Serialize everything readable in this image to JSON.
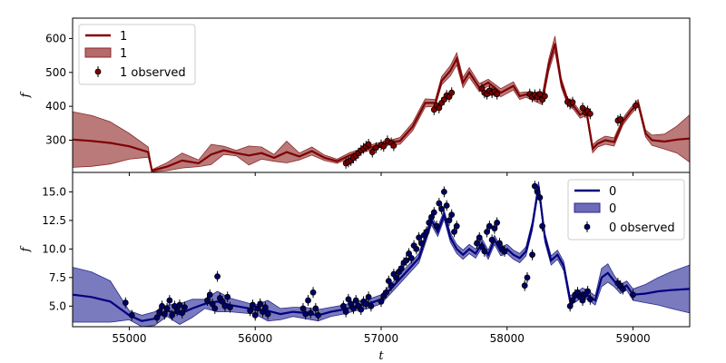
{
  "chart_data": [
    {
      "type": "line",
      "panel": "top",
      "xlabel": "",
      "ylabel": "f",
      "xlim": [
        54550,
        59450
      ],
      "ylim": [
        205,
        660
      ],
      "yticks": [
        300,
        400,
        500,
        600
      ],
      "xticks": [
        55000,
        56000,
        57000,
        58000,
        59000
      ],
      "show_xtick_labels": false,
      "legend": "top-left",
      "colors": {
        "line": "#7f0000",
        "band": "#b36b6b",
        "band_edge": "#8b2a2a"
      },
      "legend_entries": [
        "1",
        "1",
        "1 observed"
      ],
      "model_x": [
        54550,
        54700,
        54850,
        55000,
        55150,
        55180,
        55300,
        55420,
        55550,
        55650,
        55750,
        55850,
        55950,
        56050,
        56150,
        56250,
        56350,
        56450,
        56550,
        56650,
        56750,
        56850,
        56950,
        57050,
        57150,
        57250,
        57350,
        57430,
        57480,
        57550,
        57600,
        57650,
        57700,
        57780,
        57850,
        57950,
        58050,
        58100,
        58150,
        58220,
        58280,
        58330,
        58380,
        58430,
        58480,
        58530,
        58580,
        58630,
        58680,
        58720,
        58780,
        58850,
        58920,
        58980,
        59040,
        59100,
        59150,
        59250,
        59350,
        59450
      ],
      "model_y": [
        302,
        298,
        292,
        282,
        265,
        210,
        222,
        240,
        232,
        258,
        270,
        262,
        255,
        262,
        248,
        265,
        252,
        268,
        248,
        238,
        255,
        270,
        282,
        292,
        298,
        340,
        410,
        410,
        475,
        505,
        540,
        470,
        500,
        455,
        470,
        440,
        460,
        430,
        435,
        425,
        420,
        520,
        585,
        470,
        415,
        400,
        375,
        385,
        275,
        290,
        300,
        295,
        355,
        385,
        410,
        320,
        300,
        296,
        302,
        305
      ],
      "band_halfwidth": [
        82,
        75,
        62,
        38,
        15,
        3,
        12,
        22,
        10,
        30,
        12,
        8,
        28,
        18,
        10,
        32,
        10,
        12,
        8,
        6,
        8,
        6,
        8,
        6,
        10,
        12,
        12,
        10,
        12,
        15,
        18,
        15,
        14,
        12,
        10,
        12,
        12,
        10,
        8,
        10,
        15,
        18,
        22,
        14,
        10,
        10,
        10,
        12,
        12,
        10,
        12,
        12,
        10,
        10,
        10,
        10,
        15,
        22,
        40,
        70
      ],
      "observed_x": [
        56720,
        56740,
        56760,
        56780,
        56800,
        56820,
        56840,
        56860,
        56880,
        56900,
        56930,
        56960,
        57000,
        57020,
        57050,
        57080,
        57100,
        57420,
        57440,
        57460,
        57480,
        57500,
        57520,
        57540,
        57560,
        57800,
        57820,
        57840,
        57860,
        57880,
        57900,
        57920,
        58180,
        58200,
        58220,
        58240,
        58260,
        58280,
        58300,
        58480,
        58500,
        58520,
        58600,
        58620,
        58640,
        58660,
        58880,
        58900,
        59020
      ],
      "observed_y": [
        232,
        236,
        240,
        248,
        254,
        262,
        270,
        276,
        282,
        288,
        265,
        278,
        286,
        282,
        298,
        292,
        284,
        390,
        402,
        395,
        410,
        420,
        432,
        428,
        440,
        452,
        440,
        436,
        446,
        440,
        444,
        436,
        436,
        428,
        434,
        428,
        436,
        420,
        430,
        413,
        407,
        412,
        395,
        382,
        386,
        378,
        358,
        362,
        402
      ]
    },
    {
      "type": "line",
      "panel": "bottom",
      "xlabel": "t",
      "ylabel": "f",
      "xlim": [
        54550,
        59450
      ],
      "ylim": [
        3.2,
        16.7
      ],
      "yticks": [
        5.0,
        7.5,
        10.0,
        12.5,
        15.0
      ],
      "ytick_labels": [
        "5.0",
        "7.5",
        "10.0",
        "12.5",
        "15.0"
      ],
      "xticks": [
        55000,
        56000,
        57000,
        58000,
        59000
      ],
      "legend": "top-right",
      "colors": {
        "line": "#00007f",
        "band": "#6b6bb8",
        "band_edge": "#2a2a8b",
        "marker": "#00006a"
      },
      "legend_entries": [
        "0",
        "0",
        "0 observed"
      ],
      "model_x": [
        54550,
        54700,
        54850,
        55000,
        55100,
        55200,
        55300,
        55400,
        55500,
        55600,
        55700,
        55800,
        55900,
        56000,
        56100,
        56200,
        56300,
        56400,
        56500,
        56600,
        56700,
        56800,
        56900,
        57000,
        57100,
        57200,
        57300,
        57400,
        57450,
        57500,
        57550,
        57600,
        57650,
        57700,
        57750,
        57800,
        57850,
        57900,
        57950,
        58000,
        58050,
        58100,
        58150,
        58200,
        58250,
        58300,
        58350,
        58400,
        58450,
        58500,
        58550,
        58600,
        58650,
        58700,
        58750,
        58800,
        58850,
        58900,
        58950,
        59000,
        59100,
        59200,
        59300,
        59450
      ],
      "model_y": [
        6.0,
        5.8,
        5.4,
        4.2,
        3.7,
        3.9,
        4.6,
        4.3,
        4.8,
        5.2,
        5.4,
        5.1,
        4.9,
        4.7,
        4.6,
        4.3,
        4.5,
        4.4,
        4.2,
        4.5,
        4.7,
        5.0,
        5.2,
        5.6,
        6.8,
        8.0,
        9.2,
        12.5,
        11.5,
        13.0,
        11.0,
        10.0,
        9.5,
        10.0,
        9.6,
        10.5,
        9.5,
        10.8,
        9.8,
        10.0,
        9.5,
        9.2,
        9.8,
        12.0,
        15.5,
        11.0,
        9.0,
        9.5,
        8.5,
        5.5,
        5.8,
        6.2,
        5.9,
        5.5,
        7.5,
        7.9,
        7.2,
        6.5,
        6.8,
        6.0,
        6.1,
        6.3,
        6.4,
        6.5
      ],
      "band_halfwidth": [
        2.4,
        2.2,
        1.8,
        0.4,
        0.5,
        0.6,
        0.5,
        0.9,
        0.8,
        0.4,
        0.9,
        0.6,
        0.5,
        0.4,
        0.9,
        0.5,
        0.4,
        0.5,
        0.5,
        0.4,
        0.4,
        0.4,
        0.4,
        0.4,
        0.4,
        0.4,
        0.4,
        0.4,
        0.4,
        0.4,
        0.4,
        0.4,
        0.4,
        0.4,
        0.4,
        0.4,
        0.4,
        0.4,
        0.4,
        0.4,
        0.4,
        0.4,
        0.4,
        0.4,
        0.4,
        0.4,
        0.4,
        0.4,
        0.4,
        0.4,
        0.4,
        0.4,
        0.4,
        0.4,
        0.8,
        0.8,
        0.5,
        0.4,
        0.4,
        0.5,
        0.8,
        1.2,
        1.6,
        2.1
      ],
      "observed_x": [
        54970,
        55020,
        55220,
        55240,
        55260,
        55280,
        55300,
        55320,
        55340,
        55360,
        55380,
        55400,
        55420,
        55440,
        55620,
        55640,
        55660,
        55680,
        55700,
        55720,
        55740,
        55760,
        55780,
        55800,
        55960,
        55980,
        56000,
        56020,
        56040,
        56060,
        56080,
        56100,
        56380,
        56400,
        56420,
        56440,
        56460,
        56480,
        56500,
        56700,
        56720,
        56740,
        56760,
        56780,
        56800,
        56820,
        56840,
        56860,
        56880,
        56900,
        56920,
        57000,
        57020,
        57040,
        57060,
        57080,
        57100,
        57120,
        57140,
        57160,
        57180,
        57200,
        57220,
        57240,
        57260,
        57280,
        57300,
        57320,
        57340,
        57360,
        57380,
        57400,
        57420,
        57440,
        57460,
        57480,
        57500,
        57520,
        57540,
        57560,
        57580,
        57600,
        57760,
        57780,
        57800,
        57820,
        57840,
        57860,
        57880,
        57900,
        57920,
        57940,
        57960,
        57980,
        58140,
        58160,
        58200,
        58220,
        58240,
        58260,
        58280,
        58500,
        58520,
        58540,
        58560,
        58580,
        58600,
        58620,
        58640,
        58660,
        58880,
        58900,
        58920,
        59000
      ],
      "observed_y": [
        5.3,
        4.2,
        4.0,
        4.5,
        5.0,
        4.3,
        4.8,
        5.5,
        4.2,
        5.0,
        4.6,
        5.1,
        4.4,
        4.9,
        5.5,
        6.0,
        5.2,
        4.8,
        7.6,
        5.7,
        5.4,
        5.0,
        5.8,
        4.9,
        4.6,
        5.1,
        4.2,
        4.8,
        5.2,
        4.5,
        4.9,
        4.3,
        4.8,
        4.3,
        5.5,
        4.4,
        6.2,
        4.8,
        4.2,
        5.0,
        4.5,
        5.6,
        5.2,
        4.8,
        5.5,
        5.0,
        4.7,
        5.4,
        5.2,
        5.8,
        5.0,
        5.4,
        5.9,
        6.2,
        7.2,
        6.8,
        7.8,
        7.5,
        8.0,
        8.3,
        8.8,
        9.0,
        9.6,
        9.2,
        10.3,
        10.0,
        11.0,
        10.5,
        11.2,
        11.5,
        12.3,
        12.8,
        13.2,
        12.0,
        14.0,
        13.5,
        15.0,
        13.8,
        12.5,
        13.0,
        11.5,
        12.0,
        10.5,
        11.0,
        10.2,
        9.8,
        11.5,
        12.0,
        10.8,
        11.8,
        12.3,
        10.5,
        10.0,
        9.8,
        6.8,
        7.5,
        9.5,
        15.5,
        15.0,
        14.5,
        12.0,
        5.0,
        5.5,
        6.0,
        6.2,
        5.8,
        5.5,
        6.0,
        6.3,
        5.6,
        7.0,
        6.8,
        6.5,
        6.0
      ]
    }
  ]
}
